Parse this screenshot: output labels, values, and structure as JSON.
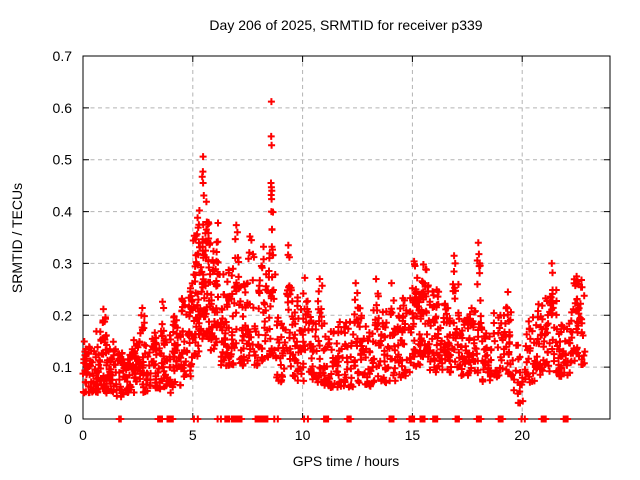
{
  "window": {
    "background": "#ffffff"
  },
  "chart_data": {
    "type": "scatter",
    "title": "Day 206 of 2025, SRMTID for receiver p339",
    "xlabel": "GPS time / hours",
    "ylabel": "SRMTID / TECUs",
    "xlim": [
      0,
      24
    ],
    "ylim": [
      0,
      0.7
    ],
    "xticks": {
      "values": [
        0,
        5,
        10,
        15,
        20
      ],
      "labels": [
        "0",
        "5",
        "10",
        "15",
        "20"
      ]
    },
    "yticks": {
      "values": [
        0,
        0.1,
        0.2,
        0.3,
        0.4,
        0.5,
        0.6,
        0.7
      ],
      "labels": [
        "0",
        "0.1",
        "0.2",
        "0.3",
        "0.4",
        "0.5",
        "0.6",
        "0.7"
      ]
    },
    "grid": true,
    "legend": false,
    "marker": {
      "shape": "plus",
      "color": "#ff0000",
      "size": 7,
      "stroke_width": 2
    },
    "grid_color": "#b3b3b3",
    "axis_color": "#000000",
    "series_name": "SRMTID",
    "outlier_points": [
      [
        5.47,
        0.506
      ],
      [
        5.46,
        0.477
      ],
      [
        5.43,
        0.467
      ],
      [
        5.47,
        0.455
      ],
      [
        5.5,
        0.431
      ],
      [
        5.62,
        0.419
      ],
      [
        5.3,
        0.402
      ],
      [
        5.22,
        0.388
      ],
      [
        8.58,
        0.612
      ],
      [
        8.57,
        0.545
      ],
      [
        8.59,
        0.528
      ],
      [
        8.56,
        0.455
      ],
      [
        8.58,
        0.447
      ],
      [
        8.6,
        0.44
      ],
      [
        8.57,
        0.432
      ],
      [
        8.59,
        0.424
      ],
      [
        8.58,
        0.4
      ],
      [
        0.93,
        0.212
      ],
      [
        1.02,
        0.196
      ],
      [
        0.9,
        0.186
      ],
      [
        2.7,
        0.214
      ],
      [
        2.66,
        0.2
      ],
      [
        3.62,
        0.226
      ],
      [
        3.67,
        0.214
      ],
      [
        6.15,
        0.378
      ],
      [
        6.98,
        0.374
      ],
      [
        7.03,
        0.36
      ],
      [
        7.6,
        0.352
      ],
      [
        7.67,
        0.345
      ],
      [
        8.22,
        0.332
      ],
      [
        9.35,
        0.335
      ],
      [
        9.4,
        0.312
      ],
      [
        10.1,
        0.272
      ],
      [
        10.78,
        0.27
      ],
      [
        12.42,
        0.262
      ],
      [
        13.35,
        0.27
      ],
      [
        14.05,
        0.262
      ],
      [
        15.08,
        0.304
      ],
      [
        15.12,
        0.295
      ],
      [
        15.5,
        0.298
      ],
      [
        16.9,
        0.315
      ],
      [
        16.95,
        0.3
      ],
      [
        18.0,
        0.34
      ],
      [
        18.03,
        0.318
      ],
      [
        18.06,
        0.3
      ],
      [
        19.35,
        0.245
      ],
      [
        21.35,
        0.3
      ],
      [
        21.38,
        0.282
      ],
      [
        22.48,
        0.275
      ],
      [
        22.52,
        0.266
      ],
      [
        22.7,
        0.268
      ]
    ],
    "density_bands": [
      [
        0.0,
        0.5,
        42,
        0.05,
        0.15
      ],
      [
        0.5,
        1.0,
        42,
        0.05,
        0.17
      ],
      [
        0.88,
        1.08,
        7,
        0.14,
        0.2
      ],
      [
        1.0,
        1.5,
        42,
        0.05,
        0.15
      ],
      [
        1.5,
        2.0,
        36,
        0.04,
        0.13
      ],
      [
        2.0,
        2.5,
        38,
        0.05,
        0.14
      ],
      [
        2.25,
        2.45,
        6,
        0.12,
        0.17
      ],
      [
        2.5,
        3.0,
        38,
        0.05,
        0.15
      ],
      [
        2.6,
        2.8,
        6,
        0.14,
        0.2
      ],
      [
        3.0,
        3.5,
        38,
        0.06,
        0.16
      ],
      [
        3.15,
        3.35,
        6,
        0.13,
        0.175
      ],
      [
        3.5,
        4.0,
        34,
        0.05,
        0.17
      ],
      [
        3.55,
        3.75,
        8,
        0.14,
        0.22
      ],
      [
        4.0,
        4.5,
        34,
        0.06,
        0.18
      ],
      [
        4.1,
        4.35,
        7,
        0.14,
        0.2
      ],
      [
        4.5,
        5.0,
        40,
        0.08,
        0.24
      ],
      [
        4.8,
        5.0,
        8,
        0.18,
        0.28
      ],
      [
        5.0,
        5.35,
        42,
        0.12,
        0.36
      ],
      [
        5.1,
        5.3,
        6,
        0.3,
        0.4
      ],
      [
        5.35,
        5.8,
        30,
        0.15,
        0.27
      ],
      [
        5.35,
        5.8,
        36,
        0.26,
        0.38
      ],
      [
        5.8,
        6.1,
        36,
        0.13,
        0.33
      ],
      [
        6.05,
        6.25,
        10,
        0.18,
        0.36
      ],
      [
        6.25,
        6.6,
        34,
        0.1,
        0.28
      ],
      [
        6.6,
        7.0,
        34,
        0.1,
        0.29
      ],
      [
        6.9,
        7.1,
        9,
        0.24,
        0.36
      ],
      [
        7.1,
        7.5,
        34,
        0.1,
        0.27
      ],
      [
        7.5,
        7.8,
        18,
        0.12,
        0.33
      ],
      [
        7.8,
        8.0,
        12,
        0.1,
        0.2
      ],
      [
        8.0,
        8.45,
        24,
        0.1,
        0.27
      ],
      [
        8.1,
        8.35,
        7,
        0.2,
        0.32
      ],
      [
        8.45,
        8.78,
        26,
        0.12,
        0.33
      ],
      [
        8.5,
        8.66,
        6,
        0.3,
        0.4
      ],
      [
        8.78,
        9.2,
        26,
        0.07,
        0.22
      ],
      [
        9.2,
        9.7,
        32,
        0.08,
        0.27
      ],
      [
        9.3,
        9.5,
        6,
        0.24,
        0.32
      ],
      [
        9.7,
        10.3,
        32,
        0.07,
        0.24
      ],
      [
        10.0,
        10.25,
        6,
        0.18,
        0.26
      ],
      [
        10.3,
        11.0,
        44,
        0.07,
        0.2
      ],
      [
        10.7,
        10.9,
        7,
        0.17,
        0.26
      ],
      [
        11.0,
        11.6,
        40,
        0.06,
        0.17
      ],
      [
        11.6,
        12.3,
        40,
        0.06,
        0.19
      ],
      [
        12.3,
        12.7,
        26,
        0.07,
        0.22
      ],
      [
        12.35,
        12.55,
        7,
        0.17,
        0.25
      ],
      [
        12.7,
        13.2,
        30,
        0.06,
        0.18
      ],
      [
        13.2,
        13.6,
        26,
        0.07,
        0.22
      ],
      [
        13.3,
        13.5,
        5,
        0.18,
        0.25
      ],
      [
        13.6,
        14.3,
        36,
        0.07,
        0.21
      ],
      [
        14.0,
        14.2,
        6,
        0.16,
        0.23
      ],
      [
        14.3,
        14.9,
        36,
        0.08,
        0.23
      ],
      [
        14.5,
        14.68,
        6,
        0.17,
        0.24
      ],
      [
        14.9,
        15.35,
        36,
        0.1,
        0.27
      ],
      [
        15.0,
        15.25,
        8,
        0.22,
        0.3
      ],
      [
        15.35,
        15.8,
        46,
        0.12,
        0.27
      ],
      [
        15.45,
        15.65,
        6,
        0.23,
        0.29
      ],
      [
        15.8,
        16.3,
        40,
        0.09,
        0.25
      ],
      [
        16.3,
        16.8,
        40,
        0.09,
        0.23
      ],
      [
        16.8,
        17.15,
        22,
        0.1,
        0.27
      ],
      [
        16.85,
        17.0,
        5,
        0.24,
        0.3
      ],
      [
        17.15,
        17.6,
        34,
        0.08,
        0.2
      ],
      [
        17.6,
        18.0,
        30,
        0.08,
        0.22
      ],
      [
        17.95,
        18.12,
        9,
        0.18,
        0.32
      ],
      [
        18.12,
        18.7,
        34,
        0.07,
        0.19
      ],
      [
        18.7,
        19.2,
        30,
        0.08,
        0.21
      ],
      [
        19.2,
        19.6,
        28,
        0.08,
        0.22
      ],
      [
        19.6,
        20.2,
        22,
        0.03,
        0.15
      ],
      [
        20.2,
        20.7,
        30,
        0.07,
        0.2
      ],
      [
        20.7,
        21.1,
        28,
        0.08,
        0.24
      ],
      [
        21.1,
        21.6,
        30,
        0.09,
        0.25
      ],
      [
        21.25,
        21.45,
        6,
        0.2,
        0.28
      ],
      [
        21.6,
        22.2,
        36,
        0.08,
        0.19
      ],
      [
        22.2,
        22.6,
        30,
        0.1,
        0.24
      ],
      [
        22.35,
        22.6,
        8,
        0.2,
        0.27
      ],
      [
        22.6,
        22.9,
        16,
        0.1,
        0.26
      ]
    ],
    "zero_value_runs": [
      [
        1.65,
        1.72,
        0
      ],
      [
        3.42,
        3.6,
        1
      ],
      [
        3.85,
        4.1,
        1
      ],
      [
        5.05,
        5.23,
        0
      ],
      [
        6.13,
        6.28,
        0
      ],
      [
        6.48,
        6.68,
        1
      ],
      [
        6.78,
        7.0,
        1
      ],
      [
        7.04,
        7.24,
        1
      ],
      [
        7.86,
        8.42,
        1
      ],
      [
        8.71,
        8.87,
        0
      ],
      [
        10.07,
        10.24,
        0
      ],
      [
        10.98,
        11.17,
        1
      ],
      [
        12.04,
        12.21,
        1
      ],
      [
        13.96,
        14.15,
        1
      ],
      [
        14.87,
        15.09,
        1
      ],
      [
        15.37,
        15.55,
        1
      ],
      [
        15.95,
        16.14,
        1
      ],
      [
        16.97,
        17.15,
        1
      ],
      [
        17.94,
        18.14,
        1
      ],
      [
        18.93,
        19.12,
        1
      ],
      [
        19.97,
        20.12,
        0
      ],
      [
        20.89,
        21.09,
        1
      ],
      [
        21.89,
        22.08,
        1
      ]
    ]
  }
}
